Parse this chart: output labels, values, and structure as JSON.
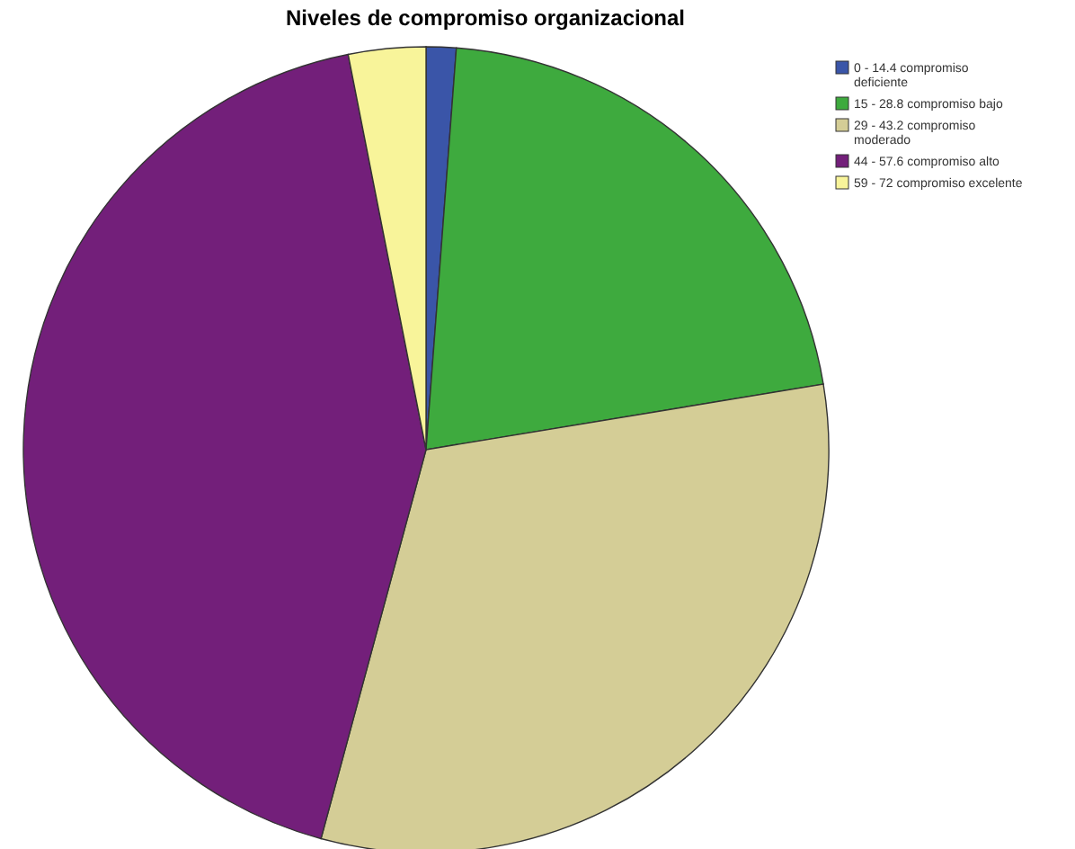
{
  "chart_data": {
    "type": "pie",
    "title": "Niveles de compromiso organizacional",
    "categories": [
      "0 - 14.4 compromiso deficiente",
      "15 - 28.8 compromiso bajo",
      "29 - 43.2 compromiso moderado",
      "44 - 57.6 compromiso alto",
      "59 - 72 compromiso excelente"
    ],
    "values": [
      1.2,
      21.2,
      31.8,
      42.7,
      3.1
    ],
    "colors": [
      "#3a55a8",
      "#3eaa3e",
      "#d4cd96",
      "#731f7a",
      "#f8f49a"
    ],
    "legend": "top right"
  }
}
